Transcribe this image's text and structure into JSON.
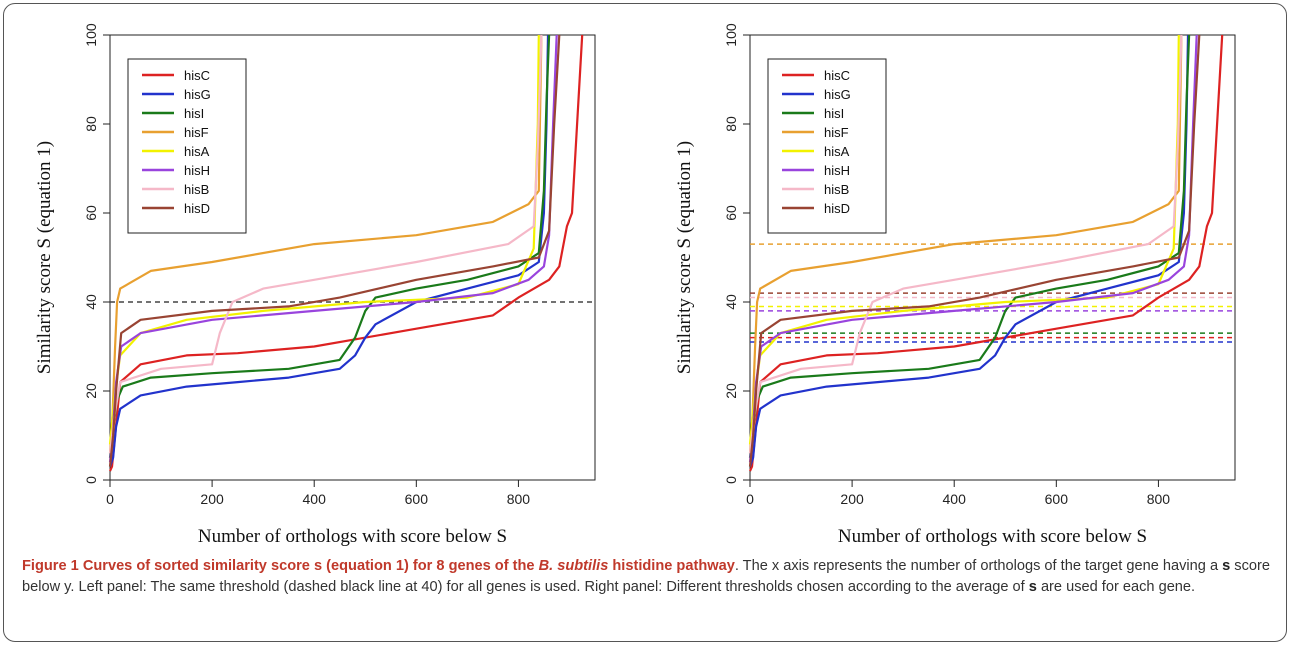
{
  "chart_data": [
    {
      "type": "line",
      "panel": "left",
      "xlabel": "Number of orthologs with score below S",
      "ylabel": "Similarity score S (equation 1)",
      "xlim": [
        0,
        950
      ],
      "ylim": [
        0,
        100
      ],
      "xticks": [
        0,
        200,
        400,
        600,
        800
      ],
      "yticks": [
        0,
        20,
        40,
        60,
        80,
        100
      ],
      "grid": false,
      "legend_position": "top-left",
      "series": [
        {
          "name": "hisC",
          "color": "#dd2222",
          "points": [
            [
              0,
              2
            ],
            [
              4,
              3
            ],
            [
              10,
              10
            ],
            [
              20,
              22
            ],
            [
              60,
              26
            ],
            [
              150,
              28
            ],
            [
              250,
              28.5
            ],
            [
              400,
              30
            ],
            [
              600,
              34
            ],
            [
              750,
              37
            ],
            [
              800,
              41
            ],
            [
              860,
              45
            ],
            [
              880,
              48
            ],
            [
              895,
              57
            ],
            [
              905,
              60
            ],
            [
              915,
              80
            ],
            [
              925,
              100
            ]
          ]
        },
        {
          "name": "hisG",
          "color": "#2233cc",
          "points": [
            [
              0,
              3
            ],
            [
              6,
              5
            ],
            [
              12,
              12
            ],
            [
              20,
              16
            ],
            [
              60,
              19
            ],
            [
              150,
              21
            ],
            [
              250,
              22
            ],
            [
              350,
              23
            ],
            [
              450,
              25
            ],
            [
              480,
              28
            ],
            [
              500,
              32
            ],
            [
              520,
              35
            ],
            [
              600,
              40
            ],
            [
              700,
              43
            ],
            [
              800,
              46
            ],
            [
              840,
              49
            ],
            [
              850,
              60
            ],
            [
              855,
              80
            ],
            [
              858,
              100
            ]
          ]
        },
        {
          "name": "hisI",
          "color": "#1a7a1a",
          "points": [
            [
              0,
              5
            ],
            [
              6,
              12
            ],
            [
              14,
              18
            ],
            [
              25,
              21
            ],
            [
              80,
              23
            ],
            [
              200,
              24
            ],
            [
              350,
              25
            ],
            [
              450,
              27
            ],
            [
              480,
              32
            ],
            [
              500,
              38
            ],
            [
              520,
              41
            ],
            [
              600,
              43
            ],
            [
              700,
              45
            ],
            [
              800,
              48
            ],
            [
              840,
              51
            ],
            [
              850,
              65
            ],
            [
              855,
              85
            ],
            [
              860,
              100
            ]
          ]
        },
        {
          "name": "hisF",
          "color": "#e8a030",
          "points": [
            [
              0,
              6
            ],
            [
              5,
              15
            ],
            [
              10,
              30
            ],
            [
              14,
              40
            ],
            [
              20,
              43
            ],
            [
              80,
              47
            ],
            [
              200,
              49
            ],
            [
              400,
              53
            ],
            [
              600,
              55
            ],
            [
              750,
              58
            ],
            [
              820,
              62
            ],
            [
              840,
              65
            ],
            [
              845,
              100
            ]
          ]
        },
        {
          "name": "hisA",
          "color": "#f2f200",
          "points": [
            [
              0,
              8
            ],
            [
              8,
              18
            ],
            [
              20,
              28
            ],
            [
              60,
              33
            ],
            [
              150,
              36
            ],
            [
              300,
              38
            ],
            [
              500,
              40
            ],
            [
              700,
              41
            ],
            [
              800,
              44
            ],
            [
              830,
              52
            ],
            [
              838,
              80
            ],
            [
              840,
              100
            ]
          ]
        },
        {
          "name": "hisH",
          "color": "#9944dd",
          "points": [
            [
              0,
              4
            ],
            [
              6,
              12
            ],
            [
              12,
              22
            ],
            [
              22,
              30
            ],
            [
              60,
              33
            ],
            [
              200,
              36
            ],
            [
              400,
              38
            ],
            [
              600,
              40
            ],
            [
              750,
              42
            ],
            [
              820,
              45
            ],
            [
              850,
              48
            ],
            [
              860,
              55
            ],
            [
              868,
              80
            ],
            [
              875,
              100
            ]
          ]
        },
        {
          "name": "hisB",
          "color": "#f5b8c8",
          "points": [
            [
              0,
              6
            ],
            [
              8,
              14
            ],
            [
              20,
              22
            ],
            [
              100,
              25
            ],
            [
              200,
              26
            ],
            [
              215,
              33
            ],
            [
              240,
              40
            ],
            [
              300,
              43
            ],
            [
              400,
              45
            ],
            [
              600,
              49
            ],
            [
              780,
              53
            ],
            [
              830,
              57
            ],
            [
              838,
              75
            ],
            [
              845,
              100
            ]
          ]
        },
        {
          "name": "hisD",
          "color": "#994433",
          "points": [
            [
              0,
              3
            ],
            [
              6,
              10
            ],
            [
              12,
              20
            ],
            [
              22,
              33
            ],
            [
              60,
              36
            ],
            [
              200,
              38
            ],
            [
              350,
              39
            ],
            [
              450,
              41
            ],
            [
              600,
              45
            ],
            [
              750,
              48
            ],
            [
              840,
              50
            ],
            [
              860,
              56
            ],
            [
              870,
              80
            ],
            [
              880,
              100
            ]
          ]
        }
      ],
      "thresholds": [
        {
          "y": 40,
          "color": "#444444"
        }
      ]
    },
    {
      "type": "line",
      "panel": "right",
      "xlabel": "Number of orthologs with score below S",
      "ylabel": "Similarity score S (equation 1)",
      "xlim": [
        0,
        950
      ],
      "ylim": [
        0,
        100
      ],
      "xticks": [
        0,
        200,
        400,
        600,
        800
      ],
      "yticks": [
        0,
        20,
        40,
        60,
        80,
        100
      ],
      "grid": false,
      "legend_position": "top-left",
      "series": [
        {
          "name": "hisC",
          "color": "#dd2222",
          "points": [
            [
              0,
              2
            ],
            [
              4,
              3
            ],
            [
              10,
              10
            ],
            [
              20,
              22
            ],
            [
              60,
              26
            ],
            [
              150,
              28
            ],
            [
              250,
              28.5
            ],
            [
              400,
              30
            ],
            [
              600,
              34
            ],
            [
              750,
              37
            ],
            [
              800,
              41
            ],
            [
              860,
              45
            ],
            [
              880,
              48
            ],
            [
              895,
              57
            ],
            [
              905,
              60
            ],
            [
              915,
              80
            ],
            [
              925,
              100
            ]
          ]
        },
        {
          "name": "hisG",
          "color": "#2233cc",
          "points": [
            [
              0,
              3
            ],
            [
              6,
              5
            ],
            [
              12,
              12
            ],
            [
              20,
              16
            ],
            [
              60,
              19
            ],
            [
              150,
              21
            ],
            [
              250,
              22
            ],
            [
              350,
              23
            ],
            [
              450,
              25
            ],
            [
              480,
              28
            ],
            [
              500,
              32
            ],
            [
              520,
              35
            ],
            [
              600,
              40
            ],
            [
              700,
              43
            ],
            [
              800,
              46
            ],
            [
              840,
              49
            ],
            [
              850,
              60
            ],
            [
              855,
              80
            ],
            [
              858,
              100
            ]
          ]
        },
        {
          "name": "hisI",
          "color": "#1a7a1a",
          "points": [
            [
              0,
              5
            ],
            [
              6,
              12
            ],
            [
              14,
              18
            ],
            [
              25,
              21
            ],
            [
              80,
              23
            ],
            [
              200,
              24
            ],
            [
              350,
              25
            ],
            [
              450,
              27
            ],
            [
              480,
              32
            ],
            [
              500,
              38
            ],
            [
              520,
              41
            ],
            [
              600,
              43
            ],
            [
              700,
              45
            ],
            [
              800,
              48
            ],
            [
              840,
              51
            ],
            [
              850,
              65
            ],
            [
              855,
              85
            ],
            [
              860,
              100
            ]
          ]
        },
        {
          "name": "hisF",
          "color": "#e8a030",
          "points": [
            [
              0,
              6
            ],
            [
              5,
              15
            ],
            [
              10,
              30
            ],
            [
              14,
              40
            ],
            [
              20,
              43
            ],
            [
              80,
              47
            ],
            [
              200,
              49
            ],
            [
              400,
              53
            ],
            [
              600,
              55
            ],
            [
              750,
              58
            ],
            [
              820,
              62
            ],
            [
              840,
              65
            ],
            [
              845,
              100
            ]
          ]
        },
        {
          "name": "hisA",
          "color": "#f2f200",
          "points": [
            [
              0,
              8
            ],
            [
              8,
              18
            ],
            [
              20,
              28
            ],
            [
              60,
              33
            ],
            [
              150,
              36
            ],
            [
              300,
              38
            ],
            [
              500,
              40
            ],
            [
              700,
              41
            ],
            [
              800,
              44
            ],
            [
              830,
              52
            ],
            [
              838,
              80
            ],
            [
              840,
              100
            ]
          ]
        },
        {
          "name": "hisH",
          "color": "#9944dd",
          "points": [
            [
              0,
              4
            ],
            [
              6,
              12
            ],
            [
              12,
              22
            ],
            [
              22,
              30
            ],
            [
              60,
              33
            ],
            [
              200,
              36
            ],
            [
              400,
              38
            ],
            [
              600,
              40
            ],
            [
              750,
              42
            ],
            [
              820,
              45
            ],
            [
              850,
              48
            ],
            [
              860,
              55
            ],
            [
              868,
              80
            ],
            [
              875,
              100
            ]
          ]
        },
        {
          "name": "hisB",
          "color": "#f5b8c8",
          "points": [
            [
              0,
              6
            ],
            [
              8,
              14
            ],
            [
              20,
              22
            ],
            [
              100,
              25
            ],
            [
              200,
              26
            ],
            [
              215,
              33
            ],
            [
              240,
              40
            ],
            [
              300,
              43
            ],
            [
              400,
              45
            ],
            [
              600,
              49
            ],
            [
              780,
              53
            ],
            [
              830,
              57
            ],
            [
              838,
              75
            ],
            [
              845,
              100
            ]
          ]
        },
        {
          "name": "hisD",
          "color": "#994433",
          "points": [
            [
              0,
              3
            ],
            [
              6,
              10
            ],
            [
              12,
              20
            ],
            [
              22,
              33
            ],
            [
              60,
              36
            ],
            [
              200,
              38
            ],
            [
              350,
              39
            ],
            [
              450,
              41
            ],
            [
              600,
              45
            ],
            [
              750,
              48
            ],
            [
              840,
              50
            ],
            [
              860,
              56
            ],
            [
              870,
              80
            ],
            [
              880,
              100
            ]
          ]
        }
      ],
      "thresholds": [
        {
          "y": 53,
          "color": "#e8a030"
        },
        {
          "y": 42,
          "color": "#994433"
        },
        {
          "y": 41,
          "color": "#f5b8c8"
        },
        {
          "y": 39,
          "color": "#f2f200"
        },
        {
          "y": 38,
          "color": "#9944dd"
        },
        {
          "y": 33,
          "color": "#1a7a1a"
        },
        {
          "y": 32,
          "color": "#dd2222"
        },
        {
          "y": 31,
          "color": "#2233cc"
        }
      ]
    }
  ],
  "caption": {
    "title": "Figure 1 Curves of sorted similarity score s (equation 1) for 8 genes of the ",
    "title_species": "B. subtilis",
    "title_end": " histidine pathway",
    "text1": ". The x axis represents the number of orthologs of the target gene having a ",
    "bold1": "s",
    "text2": " score below y. Left panel: The same threshold (dashed black line at 40) for all genes is used. Right panel: Different thresholds chosen according to the average of ",
    "bold2": "s",
    "text3": " are used for each gene."
  }
}
